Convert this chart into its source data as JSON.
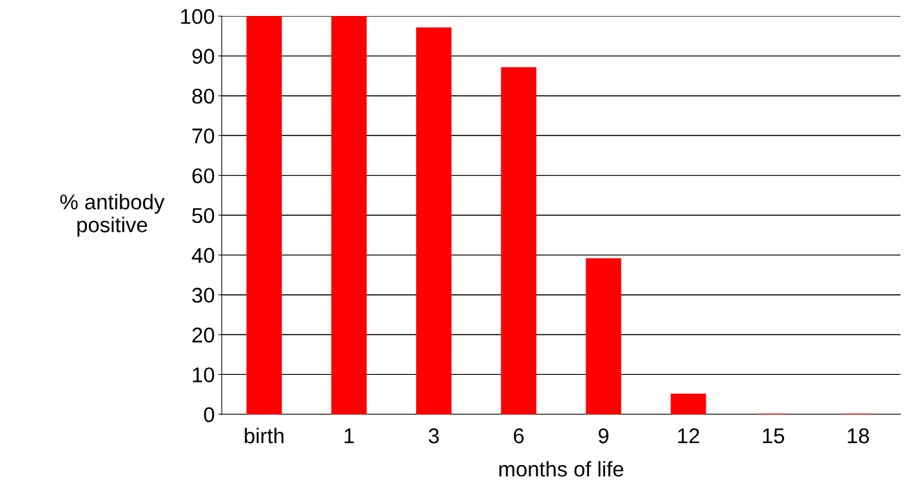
{
  "chart_data": {
    "type": "bar",
    "xlabel": "months of life",
    "ylabel": "% antibody\npositive",
    "categories": [
      "birth",
      "1",
      "3",
      "6",
      "9",
      "12",
      "15",
      "18"
    ],
    "values": [
      100,
      100,
      97,
      87,
      39,
      5,
      0,
      0
    ],
    "color": "#ff0000",
    "ylim": [
      0,
      100
    ],
    "yticks": [
      0,
      10,
      20,
      30,
      40,
      50,
      60,
      70,
      80,
      90,
      100
    ],
    "grid": "y"
  }
}
